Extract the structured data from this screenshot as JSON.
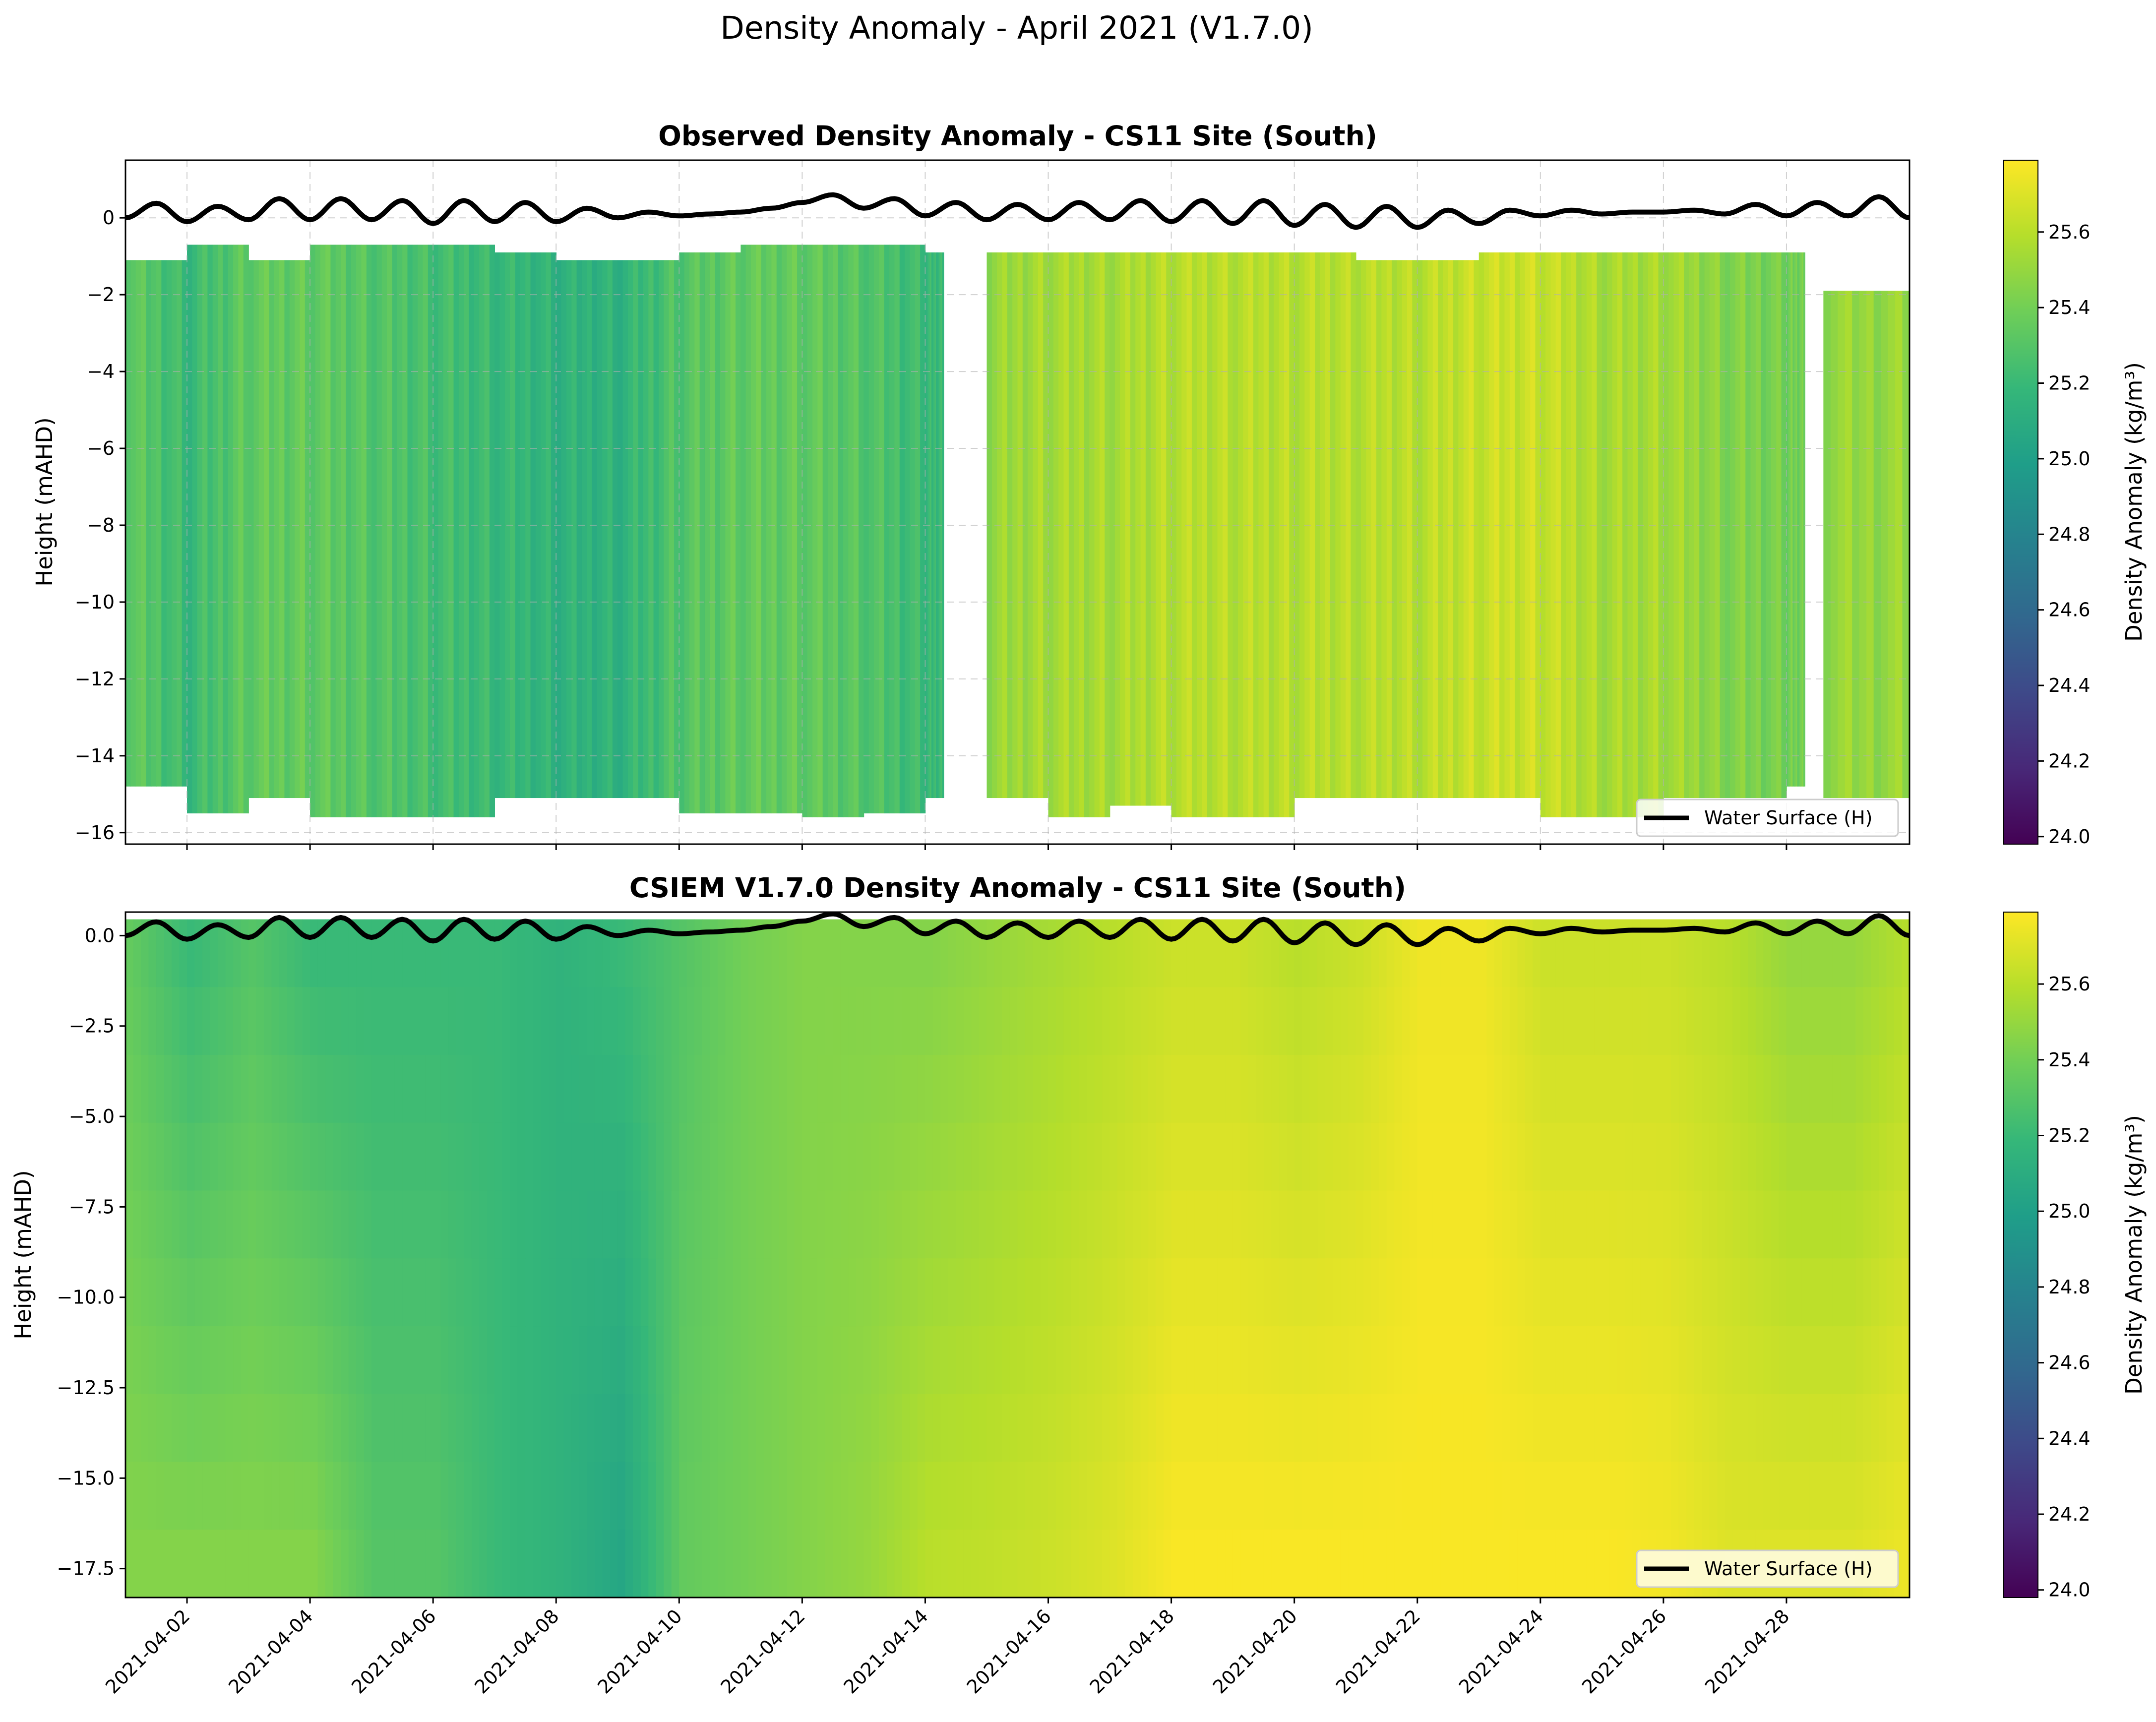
{
  "figure": {
    "suptitle": "Density Anomaly - April 2021 (V1.7.0)"
  },
  "colormap": {
    "name": "viridis",
    "stops": [
      "#440154",
      "#482878",
      "#3e4989",
      "#31688e",
      "#26828e",
      "#1f9e89",
      "#35b779",
      "#6ece58",
      "#b5de2b",
      "#fde725"
    ]
  },
  "chart_data": [
    {
      "type": "heatmap",
      "title": "Observed Density Anomaly - CS11 Site (South)",
      "xlabel": "",
      "ylabel": "Height (mAHD)",
      "xlim": [
        "2021-04-01",
        "2021-04-30"
      ],
      "ylim": [
        -16.3,
        1.5
      ],
      "yticks": [
        0,
        -2,
        -4,
        -6,
        -8,
        -10,
        -12,
        -14,
        -16
      ],
      "ytick_labels": [
        "0",
        "−2",
        "−4",
        "−6",
        "−8",
        "−10",
        "−12",
        "−14",
        "−16"
      ],
      "colorbar": {
        "label": "Density Anomaly (kg/m³)",
        "range": [
          23.98,
          25.79
        ],
        "ticks": [
          24.0,
          24.2,
          24.4,
          24.6,
          24.8,
          25.0,
          25.2,
          25.4,
          25.6
        ],
        "tick_labels": [
          "24.0",
          "24.2",
          "24.4",
          "24.6",
          "24.8",
          "25.0",
          "25.2",
          "25.4",
          "25.6"
        ]
      },
      "legend": {
        "entries": [
          "Water Surface (H)"
        ],
        "location": "lower right"
      },
      "grid": true,
      "columns": [
        {
          "day": 1.0,
          "value": 25.35,
          "top": -1.1,
          "bottom": -14.8
        },
        {
          "day": 2.0,
          "value": 25.2,
          "top": -0.7,
          "bottom": -15.5
        },
        {
          "day": 3.0,
          "value": 25.35,
          "top": -1.1,
          "bottom": -15.1
        },
        {
          "day": 4.0,
          "value": 25.35,
          "top": -0.7,
          "bottom": -15.6
        },
        {
          "day": 5.0,
          "value": 25.3,
          "top": -0.7,
          "bottom": -15.6
        },
        {
          "day": 6.0,
          "value": 25.25,
          "top": -0.7,
          "bottom": -15.6
        },
        {
          "day": 7.0,
          "value": 25.2,
          "top": -0.9,
          "bottom": -15.1
        },
        {
          "day": 8.0,
          "value": 25.15,
          "top": -1.1,
          "bottom": -15.1
        },
        {
          "day": 9.0,
          "value": 25.15,
          "top": -1.1,
          "bottom": -15.1
        },
        {
          "day": 10.0,
          "value": 25.3,
          "top": -0.9,
          "bottom": -15.5
        },
        {
          "day": 11.0,
          "value": 25.35,
          "top": -0.7,
          "bottom": -15.5
        },
        {
          "day": 12.0,
          "value": 25.35,
          "top": -0.7,
          "bottom": -15.6
        },
        {
          "day": 13.0,
          "value": 25.3,
          "top": -0.7,
          "bottom": -15.5
        },
        {
          "day": 14.0,
          "value": 25.2,
          "top": -0.9,
          "bottom": -15.1
        },
        {
          "day": 14.3,
          "value": null,
          "top": -0.9,
          "bottom": -15.1
        },
        {
          "day": 15.0,
          "value": 25.5,
          "top": -0.9,
          "bottom": -15.1
        },
        {
          "day": 16.0,
          "value": 25.55,
          "top": -0.9,
          "bottom": -15.6
        },
        {
          "day": 17.0,
          "value": 25.55,
          "top": -0.9,
          "bottom": -15.3
        },
        {
          "day": 18.0,
          "value": 25.6,
          "top": -0.9,
          "bottom": -15.6
        },
        {
          "day": 19.0,
          "value": 25.6,
          "top": -0.9,
          "bottom": -15.6
        },
        {
          "day": 20.0,
          "value": 25.6,
          "top": -0.9,
          "bottom": -15.1
        },
        {
          "day": 21.0,
          "value": 25.6,
          "top": -1.1,
          "bottom": -15.1
        },
        {
          "day": 22.0,
          "value": 25.6,
          "top": -1.1,
          "bottom": -15.1
        },
        {
          "day": 23.0,
          "value": 25.65,
          "top": -0.9,
          "bottom": -15.1
        },
        {
          "day": 24.0,
          "value": 25.65,
          "top": -0.9,
          "bottom": -15.6
        },
        {
          "day": 25.0,
          "value": 25.55,
          "top": -0.9,
          "bottom": -15.6
        },
        {
          "day": 26.0,
          "value": 25.55,
          "top": -0.9,
          "bottom": -15.1
        },
        {
          "day": 27.0,
          "value": 25.45,
          "top": -0.9,
          "bottom": -15.1
        },
        {
          "day": 28.0,
          "value": 25.4,
          "top": -0.9,
          "bottom": -14.8
        },
        {
          "day": 28.3,
          "value": null,
          "top": -0.9,
          "bottom": -14.8
        },
        {
          "day": 28.6,
          "value": 25.5,
          "top": -1.9,
          "bottom": -15.1
        },
        {
          "day": 30.0,
          "value": 25.5,
          "top": -2.1,
          "bottom": -15.1
        }
      ]
    },
    {
      "type": "heatmap",
      "title": "CSIEM V1.7.0 Density Anomaly - CS11 Site (South)",
      "xlabel": "",
      "ylabel": "Height (mAHD)",
      "xlim": [
        "2021-04-01",
        "2021-04-30"
      ],
      "ylim": [
        -18.3,
        0.65
      ],
      "yticks": [
        0.0,
        -2.5,
        -5.0,
        -7.5,
        -10.0,
        -12.5,
        -15.0,
        -17.5
      ],
      "ytick_labels": [
        "0.0",
        "−2.5",
        "−5.0",
        "−7.5",
        "−10.0",
        "−12.5",
        "−15.0",
        "−17.5"
      ],
      "colorbar": {
        "label": "Density Anomaly (kg/m³)",
        "range": [
          23.98,
          25.79
        ],
        "ticks": [
          24.0,
          24.2,
          24.4,
          24.6,
          24.8,
          25.0,
          25.2,
          25.4,
          25.6
        ],
        "tick_labels": [
          "24.0",
          "24.2",
          "24.4",
          "24.6",
          "24.8",
          "25.0",
          "25.2",
          "25.4",
          "25.6"
        ]
      },
      "legend": {
        "entries": [
          "Water Surface (H)"
        ],
        "location": "lower right"
      },
      "grid": false,
      "columns": [
        {
          "day": 1.0,
          "top_value": 25.35,
          "bottom_value": 25.45
        },
        {
          "day": 2.0,
          "top_value": 25.2,
          "bottom_value": 25.45
        },
        {
          "day": 3.0,
          "top_value": 25.3,
          "bottom_value": 25.45
        },
        {
          "day": 4.0,
          "top_value": 25.2,
          "bottom_value": 25.45
        },
        {
          "day": 5.0,
          "top_value": 25.2,
          "bottom_value": 25.3
        },
        {
          "day": 6.0,
          "top_value": 25.2,
          "bottom_value": 25.3
        },
        {
          "day": 7.0,
          "top_value": 25.2,
          "bottom_value": 25.2
        },
        {
          "day": 8.0,
          "top_value": 25.15,
          "bottom_value": 25.15
        },
        {
          "day": 9.0,
          "top_value": 25.2,
          "bottom_value": 25.05
        },
        {
          "day": 10.0,
          "top_value": 25.3,
          "bottom_value": 25.35
        },
        {
          "day": 11.0,
          "top_value": 25.4,
          "bottom_value": 25.4
        },
        {
          "day": 12.0,
          "top_value": 25.45,
          "bottom_value": 25.45
        },
        {
          "day": 13.0,
          "top_value": 25.45,
          "bottom_value": 25.5
        },
        {
          "day": 14.0,
          "top_value": 25.45,
          "bottom_value": 25.6
        },
        {
          "day": 15.0,
          "top_value": 25.5,
          "bottom_value": 25.62
        },
        {
          "day": 16.0,
          "top_value": 25.55,
          "bottom_value": 25.65
        },
        {
          "day": 17.0,
          "top_value": 25.6,
          "bottom_value": 25.7
        },
        {
          "day": 18.0,
          "top_value": 25.65,
          "bottom_value": 25.78
        },
        {
          "day": 19.0,
          "top_value": 25.65,
          "bottom_value": 25.78
        },
        {
          "day": 20.0,
          "top_value": 25.6,
          "bottom_value": 25.78
        },
        {
          "day": 21.0,
          "top_value": 25.65,
          "bottom_value": 25.78
        },
        {
          "day": 22.0,
          "top_value": 25.75,
          "bottom_value": 25.78
        },
        {
          "day": 23.0,
          "top_value": 25.75,
          "bottom_value": 25.78
        },
        {
          "day": 24.0,
          "top_value": 25.65,
          "bottom_value": 25.78
        },
        {
          "day": 25.0,
          "top_value": 25.65,
          "bottom_value": 25.78
        },
        {
          "day": 26.0,
          "top_value": 25.65,
          "bottom_value": 25.76
        },
        {
          "day": 27.0,
          "top_value": 25.6,
          "bottom_value": 25.7
        },
        {
          "day": 28.0,
          "top_value": 25.5,
          "bottom_value": 25.7
        },
        {
          "day": 29.0,
          "top_value": 25.5,
          "bottom_value": 25.7
        },
        {
          "day": 30.0,
          "top_value": 25.6,
          "bottom_value": 25.75
        }
      ]
    }
  ],
  "water_surface": {
    "name": "Water Surface (H)",
    "color": "#000000",
    "values": [
      {
        "day": 1.0,
        "h": 0.0
      },
      {
        "day": 1.5,
        "h": 0.38
      },
      {
        "day": 2.0,
        "h": -0.1
      },
      {
        "day": 2.5,
        "h": 0.3
      },
      {
        "day": 3.0,
        "h": -0.05
      },
      {
        "day": 3.5,
        "h": 0.5
      },
      {
        "day": 4.0,
        "h": -0.05
      },
      {
        "day": 4.5,
        "h": 0.5
      },
      {
        "day": 5.0,
        "h": -0.05
      },
      {
        "day": 5.5,
        "h": 0.45
      },
      {
        "day": 6.0,
        "h": -0.15
      },
      {
        "day": 6.5,
        "h": 0.45
      },
      {
        "day": 7.0,
        "h": -0.1
      },
      {
        "day": 7.5,
        "h": 0.4
      },
      {
        "day": 8.0,
        "h": -0.1
      },
      {
        "day": 8.5,
        "h": 0.25
      },
      {
        "day": 9.0,
        "h": 0.0
      },
      {
        "day": 9.5,
        "h": 0.15
      },
      {
        "day": 10.0,
        "h": 0.05
      },
      {
        "day": 10.5,
        "h": 0.1
      },
      {
        "day": 11.0,
        "h": 0.15
      },
      {
        "day": 11.5,
        "h": 0.25
      },
      {
        "day": 12.0,
        "h": 0.4
      },
      {
        "day": 12.5,
        "h": 0.6
      },
      {
        "day": 13.0,
        "h": 0.25
      },
      {
        "day": 13.5,
        "h": 0.5
      },
      {
        "day": 14.0,
        "h": 0.05
      },
      {
        "day": 14.5,
        "h": 0.4
      },
      {
        "day": 15.0,
        "h": -0.05
      },
      {
        "day": 15.5,
        "h": 0.35
      },
      {
        "day": 16.0,
        "h": -0.05
      },
      {
        "day": 16.5,
        "h": 0.4
      },
      {
        "day": 17.0,
        "h": -0.05
      },
      {
        "day": 17.5,
        "h": 0.45
      },
      {
        "day": 18.0,
        "h": -0.1
      },
      {
        "day": 18.5,
        "h": 0.45
      },
      {
        "day": 19.0,
        "h": -0.15
      },
      {
        "day": 19.5,
        "h": 0.45
      },
      {
        "day": 20.0,
        "h": -0.2
      },
      {
        "day": 20.5,
        "h": 0.35
      },
      {
        "day": 21.0,
        "h": -0.25
      },
      {
        "day": 21.5,
        "h": 0.3
      },
      {
        "day": 22.0,
        "h": -0.25
      },
      {
        "day": 22.5,
        "h": 0.2
      },
      {
        "day": 23.0,
        "h": -0.15
      },
      {
        "day": 23.5,
        "h": 0.2
      },
      {
        "day": 24.0,
        "h": 0.05
      },
      {
        "day": 24.5,
        "h": 0.2
      },
      {
        "day": 25.0,
        "h": 0.1
      },
      {
        "day": 25.5,
        "h": 0.15
      },
      {
        "day": 26.0,
        "h": 0.15
      },
      {
        "day": 26.5,
        "h": 0.2
      },
      {
        "day": 27.0,
        "h": 0.1
      },
      {
        "day": 27.5,
        "h": 0.35
      },
      {
        "day": 28.0,
        "h": 0.05
      },
      {
        "day": 28.5,
        "h": 0.4
      },
      {
        "day": 29.0,
        "h": 0.05
      },
      {
        "day": 29.5,
        "h": 0.55
      },
      {
        "day": 30.0,
        "h": 0.0
      }
    ]
  },
  "x_axis": {
    "tick_days": [
      2,
      4,
      6,
      8,
      10,
      12,
      14,
      16,
      18,
      20,
      22,
      24,
      26,
      28
    ],
    "tick_labels": [
      "2021-04-02",
      "2021-04-04",
      "2021-04-06",
      "2021-04-08",
      "2021-04-10",
      "2021-04-12",
      "2021-04-14",
      "2021-04-16",
      "2021-04-18",
      "2021-04-20",
      "2021-04-22",
      "2021-04-24",
      "2021-04-26",
      "2021-04-28"
    ]
  }
}
